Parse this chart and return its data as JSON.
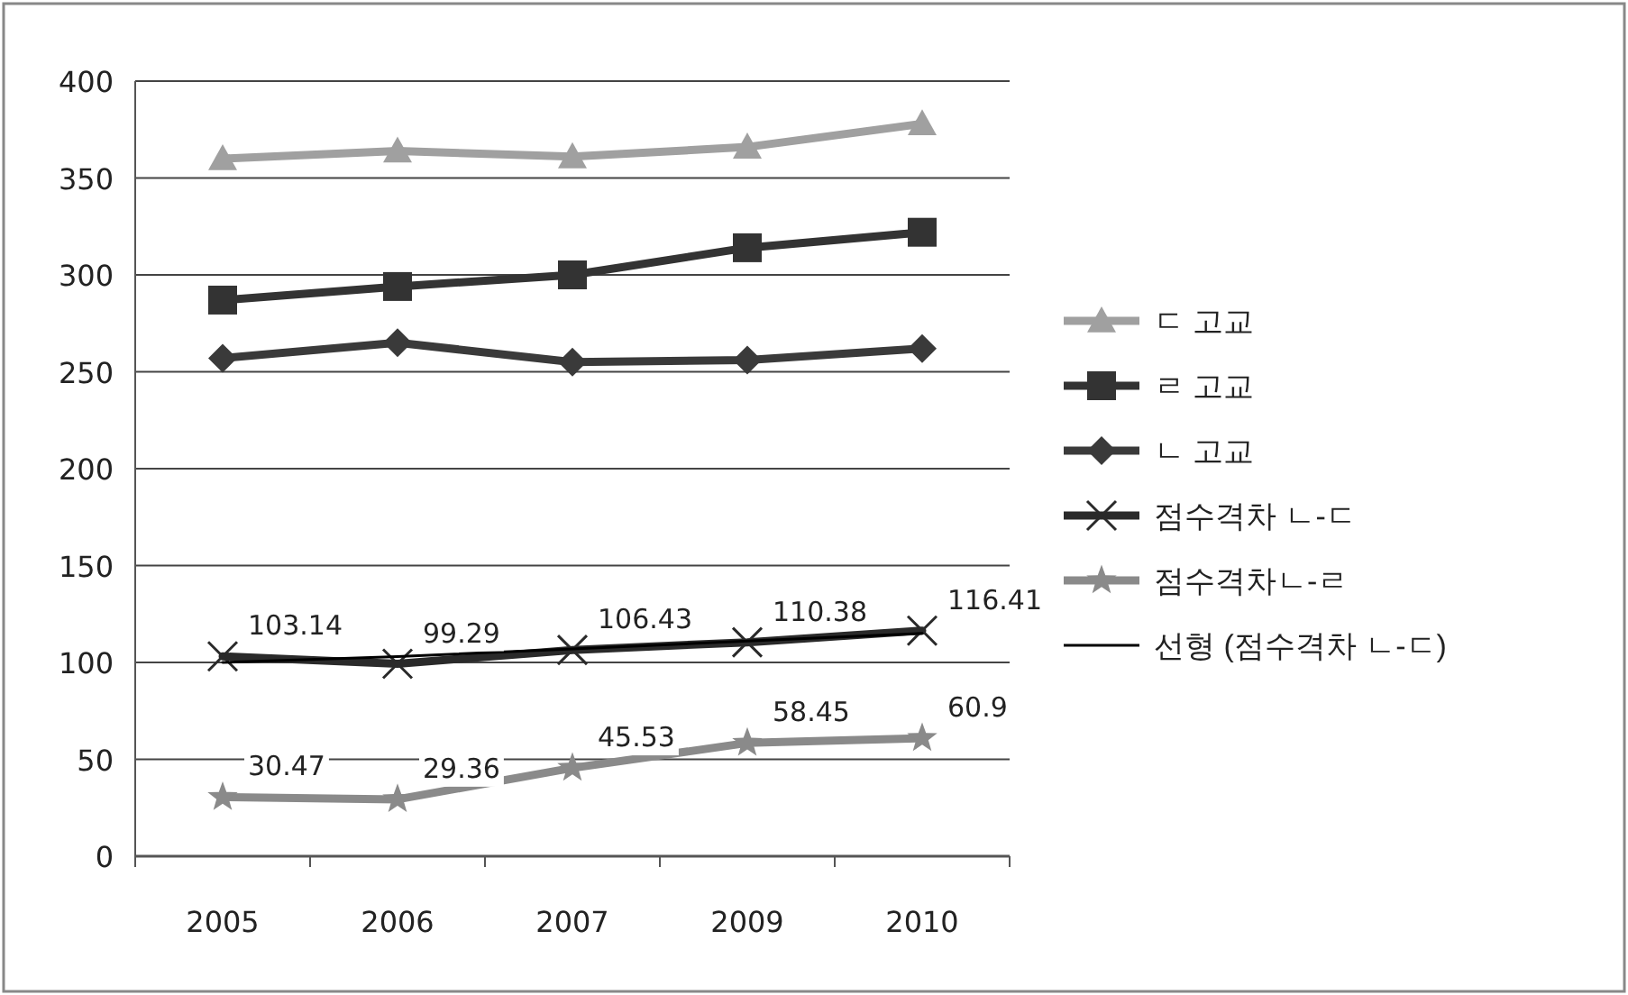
{
  "chart_data": {
    "type": "line",
    "categories": [
      "2005",
      "2006",
      "2007",
      "2009",
      "2010"
    ],
    "ylim": [
      0,
      400
    ],
    "yticks": [
      0,
      50,
      100,
      150,
      200,
      250,
      300,
      350,
      400
    ],
    "grid": "y",
    "legend": "right",
    "series": [
      {
        "name": "ㄷ 고교",
        "color": "#a0a0a0",
        "marker": "triangle",
        "values": [
          360,
          364,
          361,
          366,
          378
        ]
      },
      {
        "name": "ㄹ 고교",
        "color": "#333333",
        "marker": "square",
        "values": [
          287,
          294,
          300,
          314,
          322
        ]
      },
      {
        "name": "ㄴ 고교",
        "color": "#3a3a3a",
        "marker": "diamond",
        "values": [
          257,
          265,
          255,
          256,
          262
        ]
      },
      {
        "name": "점수격차 ㄴ-ㄷ",
        "color": "#2a2a2a",
        "marker": "cross",
        "values": [
          103.14,
          99.29,
          106.43,
          110.38,
          116.41
        ],
        "value_labels": [
          "103.14",
          "99.29",
          "106.43",
          "110.38",
          "116.41"
        ]
      },
      {
        "name": "점수격차ㄴ-ㄹ",
        "color": "#8a8a8a",
        "marker": "star",
        "values": [
          30.47,
          29.36,
          45.53,
          58.45,
          60.9
        ],
        "value_labels": [
          "30.47",
          "29.36",
          "45.53",
          "58.45",
          "60.9"
        ]
      },
      {
        "name": "선형 (점수격차 ㄴ-ㄷ)",
        "color": "#000000",
        "marker": "none",
        "values": [
          100,
          103,
          107,
          111,
          115
        ]
      }
    ]
  }
}
